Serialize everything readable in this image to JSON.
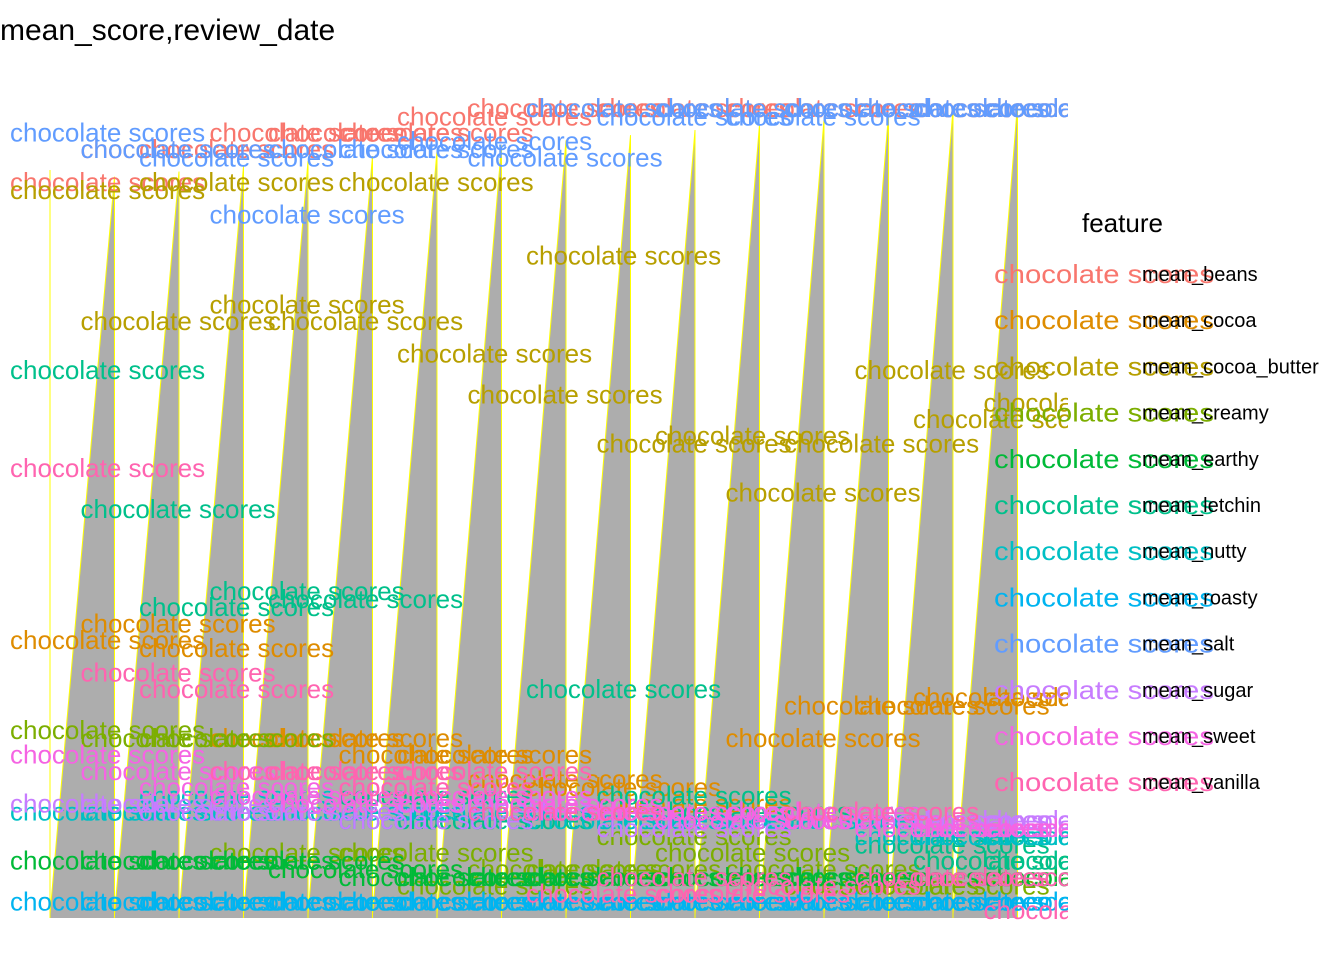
{
  "chart_data": {
    "type": "area",
    "title": "mean_score,review_date",
    "label_text": "chocolate scores",
    "y_range": [
      0,
      1
    ],
    "fill_color": "#ADADAD",
    "edge_color": "#FFFF00",
    "periods": 16,
    "legend": {
      "title": "feature",
      "position": "right",
      "items": [
        {
          "name": "mean_beans",
          "color": "#F8766D"
        },
        {
          "name": "mean_cocoa",
          "color": "#DE8C00"
        },
        {
          "name": "mean_cocoa_butter",
          "color": "#B79F00"
        },
        {
          "name": "mean_creamy",
          "color": "#7CAE00"
        },
        {
          "name": "mean_earthy",
          "color": "#00BA38"
        },
        {
          "name": "mean_letchin",
          "color": "#00C08B"
        },
        {
          "name": "mean_nutty",
          "color": "#00BFC4"
        },
        {
          "name": "mean_roasty",
          "color": "#00B4F0"
        },
        {
          "name": "mean_salt",
          "color": "#619CFF"
        },
        {
          "name": "mean_sugar",
          "color": "#C77CFF"
        },
        {
          "name": "mean_sweet",
          "color": "#F564E3"
        },
        {
          "name": "mean_vanilla",
          "color": "#FF64B0"
        }
      ]
    },
    "series": [
      {
        "name": "mean_beans",
        "values": [
          0.9,
          0.94,
          0.94,
          0.96,
          0.96,
          0.96,
          0.98,
          0.99,
          0.99,
          0.99,
          0.99,
          0.99,
          0.99,
          0.99,
          0.99,
          0.99
        ]
      },
      {
        "name": "mean_cocoa",
        "values": [
          0.34,
          0.36,
          0.33,
          0.22,
          0.22,
          0.2,
          0.2,
          0.17,
          0.16,
          0.14,
          0.13,
          0.22,
          0.26,
          0.26,
          0.27,
          0.27
        ]
      },
      {
        "name": "mean_cocoa_butter",
        "values": [
          0.89,
          0.73,
          0.9,
          0.75,
          0.73,
          0.9,
          0.69,
          0.64,
          0.81,
          0.58,
          0.59,
          0.52,
          0.58,
          0.67,
          0.61,
          0.63
        ]
      },
      {
        "name": "mean_creamy",
        "values": [
          0.23,
          0.22,
          0.22,
          0.08,
          0.06,
          0.08,
          0.04,
          0.06,
          0.06,
          0.1,
          0.08,
          0.06,
          0.04,
          0.04,
          0.07,
          0.05
        ]
      },
      {
        "name": "mean_earthy",
        "values": [
          0.07,
          0.07,
          0.07,
          0.07,
          0.06,
          0.05,
          0.05,
          0.05,
          0.05,
          0.05,
          0.05,
          0.05,
          0.05,
          0.05,
          0.05,
          0.05
        ]
      },
      {
        "name": "mean_letchin",
        "values": [
          0.67,
          0.5,
          0.38,
          0.4,
          0.39,
          0.15,
          0.12,
          0.13,
          0.28,
          0.15,
          0.13,
          0.13,
          0.12,
          0.09,
          0.07,
          0.07
        ]
      },
      {
        "name": "mean_nutty",
        "values": [
          0.13,
          0.13,
          0.15,
          0.13,
          0.13,
          0.12,
          0.13,
          0.13,
          0.12,
          0.12,
          0.12,
          0.12,
          0.12,
          0.1,
          0.1,
          0.1
        ]
      },
      {
        "name": "mean_roasty",
        "values": [
          0.02,
          0.02,
          0.02,
          0.02,
          0.02,
          0.02,
          0.02,
          0.02,
          0.02,
          0.02,
          0.02,
          0.02,
          0.02,
          0.02,
          0.02,
          0.02
        ]
      },
      {
        "name": "mean_salt",
        "values": [
          0.96,
          0.94,
          0.93,
          0.86,
          0.94,
          0.94,
          0.95,
          0.93,
          0.99,
          0.98,
          0.99,
          0.98,
          0.99,
          0.99,
          0.99,
          0.99
        ]
      },
      {
        "name": "mean_sugar",
        "values": [
          0.14,
          0.14,
          0.13,
          0.13,
          0.14,
          0.12,
          0.14,
          0.14,
          0.13,
          0.11,
          0.12,
          0.13,
          0.12,
          0.12,
          0.12,
          0.12
        ]
      },
      {
        "name": "mean_sweet",
        "values": [
          0.2,
          0.18,
          0.16,
          0.15,
          0.14,
          0.16,
          0.15,
          0.14,
          0.13,
          0.13,
          0.12,
          0.13,
          0.12,
          0.11,
          0.11,
          0.11
        ]
      },
      {
        "name": "mean_vanilla",
        "values": [
          0.55,
          0.3,
          0.28,
          0.18,
          0.18,
          0.16,
          0.18,
          0.13,
          0.03,
          0.05,
          0.03,
          0.04,
          0.13,
          0.05,
          0.05,
          0.01
        ]
      }
    ]
  }
}
